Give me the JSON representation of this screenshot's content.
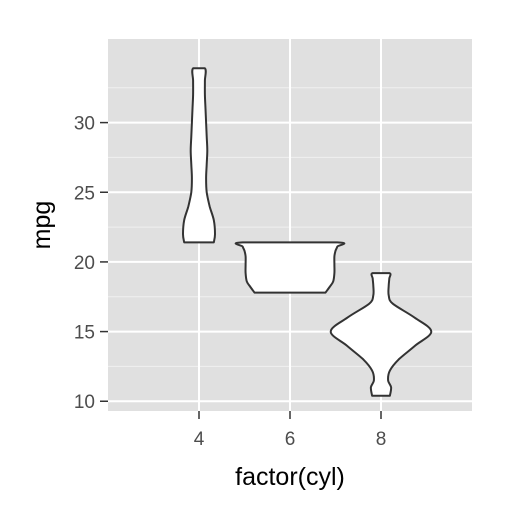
{
  "chart_data": {
    "type": "violin",
    "xlabel": "factor(cyl)",
    "ylabel": "mpg",
    "categories": [
      "4",
      "6",
      "8"
    ],
    "ylim": [
      9.3,
      36.0
    ],
    "yticks": [
      10,
      15,
      20,
      25,
      30
    ],
    "grid": true,
    "colors": {
      "panel": "#e0e0e0",
      "grid_major": "#ffffff",
      "violin_fill": "#ffffff",
      "violin_stroke": "#333333",
      "tick_text": "#4d4d4d"
    },
    "violins": [
      {
        "category": "4",
        "min": 21.4,
        "max": 33.9,
        "profile": [
          [
            21.4,
            0.25
          ],
          [
            22.0,
            0.27
          ],
          [
            23.0,
            0.25
          ],
          [
            24.0,
            0.18
          ],
          [
            25.0,
            0.13
          ],
          [
            26.0,
            0.12
          ],
          [
            27.0,
            0.13
          ],
          [
            28.0,
            0.14
          ],
          [
            29.0,
            0.13
          ],
          [
            30.0,
            0.12
          ],
          [
            31.0,
            0.11
          ],
          [
            32.0,
            0.1
          ],
          [
            33.0,
            0.1
          ],
          [
            33.9,
            0.1
          ]
        ]
      },
      {
        "category": "6",
        "min": 17.8,
        "max": 21.4,
        "profile": [
          [
            17.8,
            0.6
          ],
          [
            18.2,
            0.67
          ],
          [
            18.6,
            0.73
          ],
          [
            19.2,
            0.75
          ],
          [
            19.8,
            0.75
          ],
          [
            20.4,
            0.75
          ],
          [
            20.8,
            0.77
          ],
          [
            21.1,
            0.8
          ],
          [
            21.4,
            0.8
          ]
        ]
      },
      {
        "category": "8",
        "min": 10.4,
        "max": 19.2,
        "profile": [
          [
            10.4,
            0.15
          ],
          [
            11.0,
            0.17
          ],
          [
            11.5,
            0.12
          ],
          [
            12.2,
            0.15
          ],
          [
            13.0,
            0.3
          ],
          [
            14.0,
            0.58
          ],
          [
            15.0,
            0.85
          ],
          [
            16.0,
            0.57
          ],
          [
            17.0,
            0.2
          ],
          [
            17.6,
            0.13
          ],
          [
            18.3,
            0.13
          ],
          [
            18.8,
            0.14
          ],
          [
            19.2,
            0.14
          ]
        ]
      }
    ]
  }
}
